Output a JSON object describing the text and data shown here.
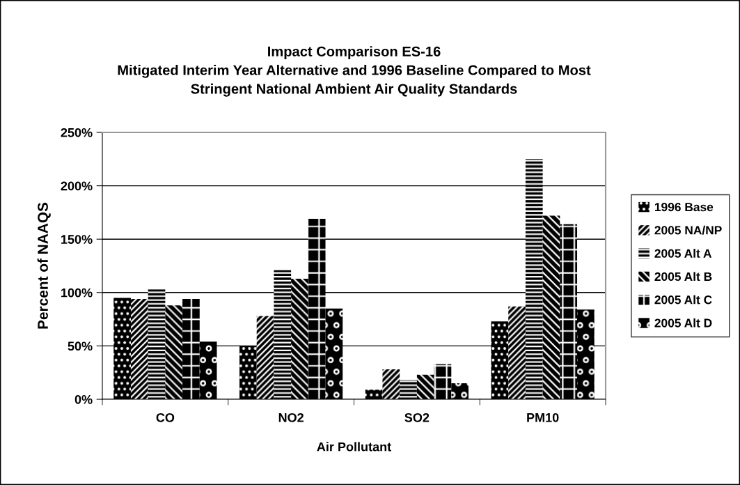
{
  "chart_data": {
    "type": "bar",
    "title": "Impact Comparison ES-16\nMitigated Interim Year Alternative and 1996 Baseline Compared to Most\nStringent National Ambient Air Quality Standards",
    "xlabel": "Air Pollutant",
    "ylabel": "Percent of NAAQS",
    "categories": [
      "CO",
      "NO2",
      "SO2",
      "PM10"
    ],
    "series": [
      {
        "name": "1996 Base",
        "color": "#000000",
        "values": [
          95,
          50,
          9,
          73
        ]
      },
      {
        "name": "2005 NA/NP",
        "color": "#000000",
        "values": [
          94,
          78,
          28,
          87
        ]
      },
      {
        "name": "2005 Alt A",
        "color": "#000000",
        "values": [
          103,
          121,
          18,
          225
        ]
      },
      {
        "name": "2005 Alt B",
        "color": "#000000",
        "values": [
          88,
          113,
          23,
          172
        ]
      },
      {
        "name": "2005 Alt C",
        "color": "#000000",
        "values": [
          94,
          169,
          33,
          164
        ]
      },
      {
        "name": "2005 Alt D",
        "color": "#000000",
        "values": [
          54,
          85,
          15,
          84
        ]
      }
    ],
    "ylim": [
      0,
      250
    ],
    "yticks": [
      {
        "value": 0,
        "label": "0%"
      },
      {
        "value": 50,
        "label": "50%"
      },
      {
        "value": 100,
        "label": "100%"
      },
      {
        "value": 150,
        "label": "150%"
      },
      {
        "value": 200,
        "label": "200%"
      },
      {
        "value": 250,
        "label": "250%"
      }
    ],
    "grid": "y",
    "legend": "right"
  }
}
